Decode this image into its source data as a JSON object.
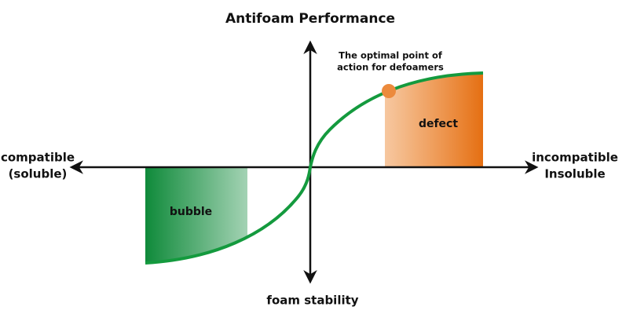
{
  "title": "Antifoam Performance",
  "annotation": {
    "lines": [
      "The optimal point of",
      "action for defoamers"
    ]
  },
  "regions": {
    "defect": "defect",
    "bubble": "bubble"
  },
  "axes": {
    "left": [
      "compatible",
      "(soluble)"
    ],
    "right": [
      "incompatible",
      "Insoluble"
    ],
    "bottom": "foam stability"
  }
}
